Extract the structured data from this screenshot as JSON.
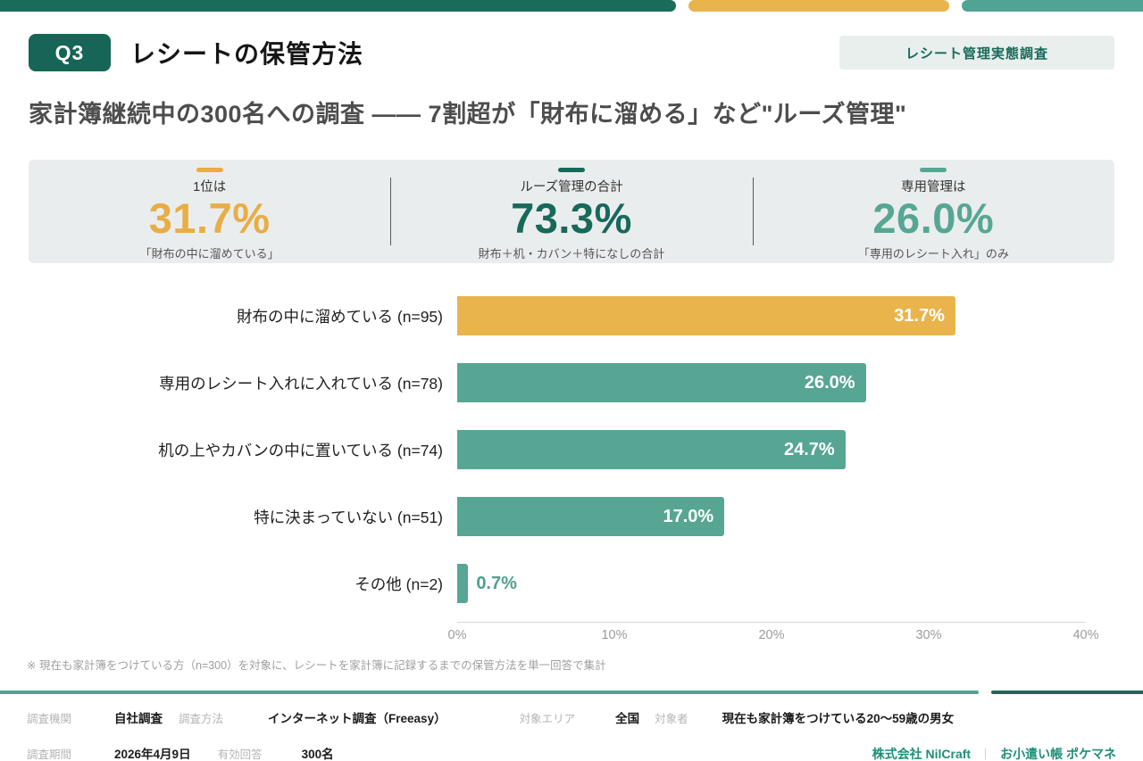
{
  "colors": {
    "dark_green": "#1A6B5A",
    "gold": "#E9B44C",
    "teal": "#57A694",
    "band_bg": "#EAEDED",
    "brand_text": "#1E8F79"
  },
  "header": {
    "badge": "Q3",
    "title": "レシートの保管方法",
    "tag": "レシート管理実態調査"
  },
  "subtitle": "家計簿継続中の300名への調査 ―― 7割超が「財布に溜める」など\"ルーズ管理\"",
  "stats": [
    {
      "label": "1位は",
      "value": "31.7%",
      "caption": "「財布の中に溜めている」",
      "color": "#E8AD45"
    },
    {
      "label": "ルーズ管理の合計",
      "value": "73.3%",
      "caption": "財布＋机・カバン＋特になしの合計",
      "color": "#17695A"
    },
    {
      "label": "専用管理は",
      "value": "26.0%",
      "caption": "「専用のレシート入れ」のみ",
      "color": "#57A694"
    }
  ],
  "chart_data": {
    "type": "bar",
    "orientation": "horizontal",
    "categories": [
      "財布の中に溜めている (n=95)",
      "専用のレシート入れに入れている (n=78)",
      "机の上やカバンの中に置いている (n=74)",
      "特に決まっていない (n=51)",
      "その他 (n=2)"
    ],
    "values": [
      31.7,
      26.0,
      24.7,
      17.0,
      0.7
    ],
    "value_labels": [
      "31.7%",
      "26.0%",
      "24.7%",
      "17.0%",
      "0.7%"
    ],
    "bar_colors": [
      "#E9B44C",
      "#57A694",
      "#57A694",
      "#57A694",
      "#57A694"
    ],
    "x_ticks": [
      "0%",
      "10%",
      "20%",
      "30%",
      "40%"
    ],
    "xlim": [
      0,
      40
    ],
    "grid": false,
    "legend": false
  },
  "footnote": "※ 現在も家計簿をつけている方（n=300）を対象に、レシートを家計簿に記録するまでの保管方法を単一回答で集計",
  "footer": {
    "row1": [
      {
        "label": "調査機関",
        "value": "自社調査"
      },
      {
        "label": "調査方法",
        "value": "インターネット調査（Freeasy）"
      },
      {
        "label": "対象エリア",
        "value": "全国"
      },
      {
        "label": "対象者",
        "value": "現在も家計簿をつけている20〜59歳の男女"
      }
    ],
    "row2": [
      {
        "label": "調査期間",
        "value": "2026年4月9日"
      },
      {
        "label": "有効回答",
        "value": "300名"
      }
    ],
    "brand": "株式会社 NilCraft",
    "separator": "｜",
    "product": "お小遣い帳 ポケマネ"
  }
}
